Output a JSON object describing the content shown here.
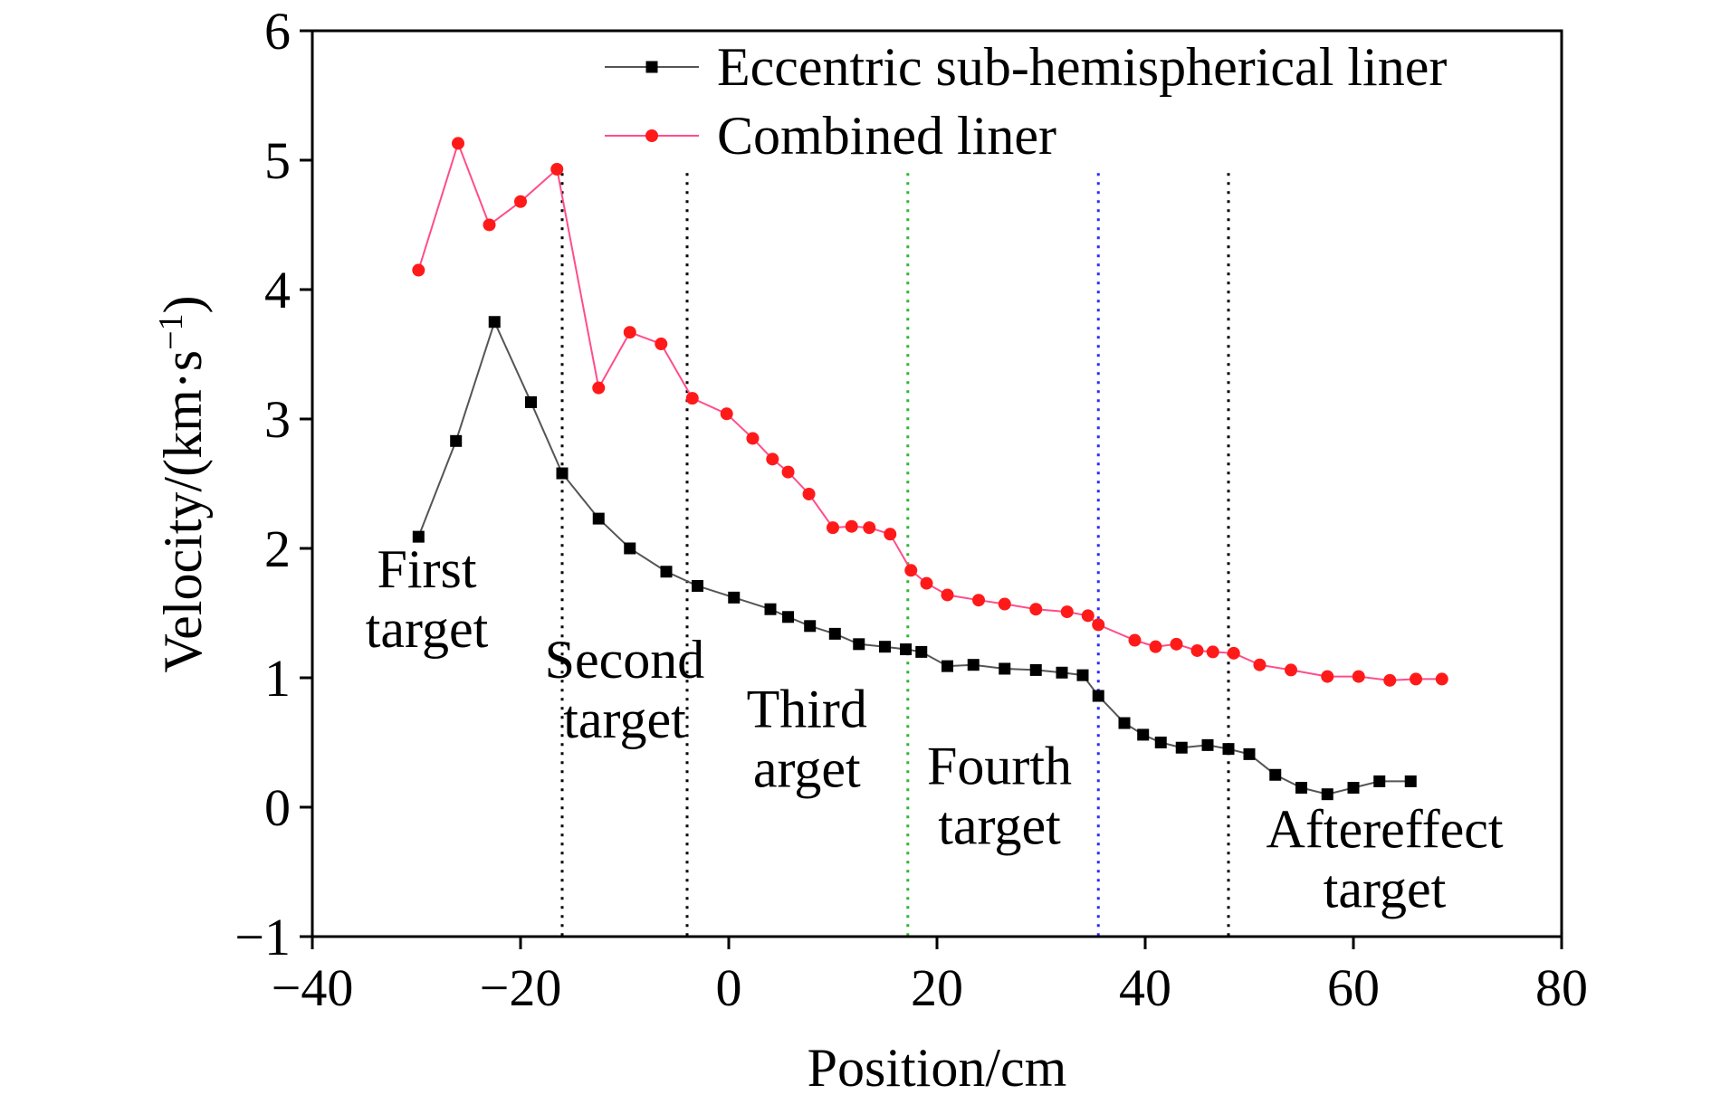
{
  "chart_data": {
    "type": "line",
    "xlabel": "Position/cm",
    "ylabel": "Velocity/(km·s",
    "ylabel_sup": "−1",
    "ylabel_close": ")",
    "xlim": [
      -40,
      80
    ],
    "ylim": [
      -1,
      6
    ],
    "xticks": [
      -40,
      -20,
      0,
      20,
      40,
      60,
      80
    ],
    "xtick_labels": [
      "−40",
      "−20",
      "0",
      "20",
      "40",
      "60",
      "80"
    ],
    "yticks": [
      -1,
      0,
      1,
      2,
      3,
      4,
      5,
      6
    ],
    "ytick_labels": [
      "−1",
      "0",
      "1",
      "2",
      "3",
      "4",
      "5",
      "6"
    ],
    "legend_position": "top-right",
    "series": [
      {
        "name": "Eccentric sub-hemispherical liner",
        "color": "#000000",
        "line_color": "#555555",
        "marker": "square",
        "x": [
          -29.8,
          -26.2,
          -22.5,
          -19.0,
          -16.0,
          -12.5,
          -9.5,
          -6.0,
          -3.0,
          0.5,
          4.0,
          5.7,
          7.8,
          10.2,
          12.5,
          15.0,
          17.0,
          18.5,
          21.0,
          23.5,
          26.5,
          29.5,
          32.0,
          34.0,
          35.5,
          38.0,
          39.8,
          41.5,
          43.5,
          46.0,
          48.0,
          50.0,
          52.5,
          55.0,
          57.5,
          60.0,
          62.5,
          65.5
        ],
        "y": [
          2.09,
          2.83,
          3.75,
          3.13,
          2.58,
          2.23,
          2.0,
          1.82,
          1.71,
          1.62,
          1.53,
          1.47,
          1.4,
          1.34,
          1.26,
          1.24,
          1.22,
          1.2,
          1.09,
          1.1,
          1.07,
          1.06,
          1.04,
          1.02,
          0.86,
          0.65,
          0.56,
          0.5,
          0.46,
          0.48,
          0.45,
          0.41,
          0.25,
          0.15,
          0.1,
          0.15,
          0.2,
          0.2
        ]
      },
      {
        "name": "Combined liner",
        "color": "#ff1a1a",
        "line_color": "#ff4d8a",
        "marker": "circle",
        "x": [
          -29.8,
          -26.0,
          -23.0,
          -20.0,
          -16.5,
          -12.5,
          -9.5,
          -6.5,
          -3.5,
          -0.2,
          2.3,
          4.2,
          5.7,
          7.7,
          10.0,
          11.8,
          13.5,
          15.5,
          17.5,
          19.0,
          21.0,
          24.0,
          26.5,
          29.5,
          32.5,
          34.5,
          35.5,
          39.0,
          41.0,
          43.0,
          45.0,
          46.5,
          48.5,
          51.0,
          54.0,
          57.5,
          60.5,
          63.5,
          66.0,
          68.5
        ],
        "y": [
          4.15,
          5.13,
          4.5,
          4.68,
          4.93,
          3.24,
          3.67,
          3.58,
          3.16,
          3.04,
          2.85,
          2.69,
          2.59,
          2.42,
          2.16,
          2.17,
          2.16,
          2.11,
          1.83,
          1.73,
          1.64,
          1.6,
          1.57,
          1.53,
          1.51,
          1.48,
          1.41,
          1.29,
          1.24,
          1.26,
          1.21,
          1.2,
          1.19,
          1.1,
          1.06,
          1.01,
          1.01,
          0.98,
          0.99,
          0.99
        ]
      }
    ],
    "reference_lines": [
      {
        "x": -16.0,
        "color": "#000000"
      },
      {
        "x": -4.0,
        "color": "#000000"
      },
      {
        "x": 17.2,
        "color": "#2fb52f"
      },
      {
        "x": 35.5,
        "color": "#2a2aff"
      },
      {
        "x": 48.0,
        "color": "#000000"
      }
    ],
    "annotations": [
      {
        "lines": [
          "First",
          "target"
        ],
        "x": -29.0,
        "y": 1.7
      },
      {
        "lines": [
          "Second",
          "target"
        ],
        "x": -10.0,
        "y": 1.0
      },
      {
        "lines": [
          "Third",
          "arget"
        ],
        "x": 7.5,
        "y": 0.62
      },
      {
        "lines": [
          "Fourth",
          "target"
        ],
        "x": 26.0,
        "y": 0.18
      },
      {
        "lines": [
          "Aftereffect",
          "target"
        ],
        "x": 63.0,
        "y": -0.31
      }
    ]
  }
}
